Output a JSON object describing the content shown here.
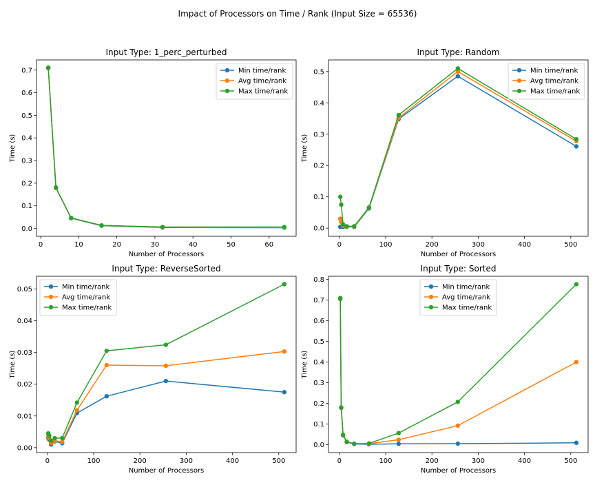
{
  "figure": {
    "suptitle": "Impact of Processors on Time / Rank (Input Size = 65536)"
  },
  "chart_data": [
    {
      "type": "line",
      "title": "Input Type: 1_perc_perturbed",
      "xlabel": "Number of Processors",
      "ylabel": "Time (s)",
      "xlim": [
        -1.1,
        67.1
      ],
      "ylim": [
        -0.035,
        0.745
      ],
      "xticks": [
        0,
        10,
        20,
        30,
        40,
        50,
        60
      ],
      "yticks": [
        0.0,
        0.1,
        0.2,
        0.3,
        0.4,
        0.5,
        0.6,
        0.7
      ],
      "ytick_labels": [
        "0.0",
        "0.1",
        "0.2",
        "0.3",
        "0.4",
        "0.5",
        "0.6",
        "0.7"
      ],
      "legend_position": "upper right",
      "x": [
        2,
        4,
        8,
        16,
        32,
        64
      ],
      "series": [
        {
          "name": "Min time/rank",
          "color": "#1f77b4",
          "values": [
            0.709,
            0.179,
            0.045,
            0.012,
            0.004,
            0.003
          ]
        },
        {
          "name": "Avg time/rank",
          "color": "#ff7f0e",
          "values": [
            0.71,
            0.18,
            0.046,
            0.013,
            0.005,
            0.004
          ]
        },
        {
          "name": "Max time/rank",
          "color": "#2ca02c",
          "values": [
            0.711,
            0.181,
            0.046,
            0.013,
            0.006,
            0.006
          ]
        }
      ]
    },
    {
      "type": "line",
      "title": "Input Type: Random",
      "xlabel": "Number of Processors",
      "ylabel": "Time (s)",
      "xlim": [
        -23.5,
        537.5
      ],
      "ylim": [
        -0.026,
        0.537
      ],
      "xticks": [
        0,
        100,
        200,
        300,
        400,
        500
      ],
      "yticks": [
        0.0,
        0.1,
        0.2,
        0.3,
        0.4,
        0.5
      ],
      "ytick_labels": [
        "0.0",
        "0.1",
        "0.2",
        "0.3",
        "0.4",
        "0.5"
      ],
      "legend_position": "upper right",
      "x": [
        2,
        4,
        8,
        16,
        32,
        64,
        128,
        256,
        512
      ],
      "series": [
        {
          "name": "Min time/rank",
          "color": "#1f77b4",
          "values": [
            0.004,
            0.005,
            0.004,
            0.004,
            0.004,
            0.063,
            0.348,
            0.485,
            0.261
          ]
        },
        {
          "name": "Avg time/rank",
          "color": "#ff7f0e",
          "values": [
            0.03,
            0.02,
            0.008,
            0.005,
            0.005,
            0.065,
            0.352,
            0.5,
            0.278
          ]
        },
        {
          "name": "Max time/rank",
          "color": "#2ca02c",
          "values": [
            0.1,
            0.075,
            0.012,
            0.006,
            0.006,
            0.066,
            0.361,
            0.51,
            0.284
          ]
        }
      ]
    },
    {
      "type": "line",
      "title": "Input Type: ReverseSorted",
      "xlabel": "Number of Processors",
      "ylabel": "Time (s)",
      "xlim": [
        -23.5,
        537.5
      ],
      "ylim": [
        -0.00155,
        0.054
      ],
      "xticks": [
        0,
        100,
        200,
        300,
        400,
        500
      ],
      "yticks": [
        0.0,
        0.01,
        0.02,
        0.03,
        0.04,
        0.05
      ],
      "ytick_labels": [
        "0.00",
        "0.01",
        "0.02",
        "0.03",
        "0.04",
        "0.05"
      ],
      "legend_position": "upper left",
      "x": [
        2,
        4,
        8,
        16,
        32,
        64,
        128,
        256,
        512
      ],
      "series": [
        {
          "name": "Min time/rank",
          "color": "#1f77b4",
          "values": [
            0.003,
            0.0025,
            0.001,
            0.002,
            0.0014,
            0.0109,
            0.0162,
            0.021,
            0.0175
          ]
        },
        {
          "name": "Avg time/rank",
          "color": "#ff7f0e",
          "values": [
            0.0035,
            0.003,
            0.0015,
            0.0022,
            0.0018,
            0.0118,
            0.026,
            0.0258,
            0.0303
          ]
        },
        {
          "name": "Max time/rank",
          "color": "#2ca02c",
          "values": [
            0.0045,
            0.0038,
            0.0022,
            0.003,
            0.003,
            0.0142,
            0.0305,
            0.0324,
            0.0515
          ]
        }
      ]
    },
    {
      "type": "line",
      "title": "Input Type: Sorted",
      "xlabel": "Number of Processors",
      "ylabel": "Time (s)",
      "xlim": [
        -23.5,
        537.5
      ],
      "ylim": [
        -0.0385,
        0.8155
      ],
      "xticks": [
        0,
        100,
        200,
        300,
        400,
        500
      ],
      "yticks": [
        0.0,
        0.1,
        0.2,
        0.3,
        0.4,
        0.5,
        0.6,
        0.7,
        0.8
      ],
      "ytick_labels": [
        "0.0",
        "0.1",
        "0.2",
        "0.3",
        "0.4",
        "0.5",
        "0.6",
        "0.7",
        "0.8"
      ],
      "legend_position": "upper center",
      "x": [
        2,
        4,
        8,
        16,
        32,
        64,
        128,
        256,
        512
      ],
      "series": [
        {
          "name": "Min time/rank",
          "color": "#1f77b4",
          "values": [
            0.705,
            0.178,
            0.045,
            0.012,
            0.003,
            0.002,
            0.004,
            0.005,
            0.009
          ]
        },
        {
          "name": "Avg time/rank",
          "color": "#ff7f0e",
          "values": [
            0.707,
            0.179,
            0.046,
            0.013,
            0.004,
            0.004,
            0.024,
            0.092,
            0.4
          ]
        },
        {
          "name": "Max time/rank",
          "color": "#2ca02c",
          "values": [
            0.71,
            0.18,
            0.047,
            0.014,
            0.005,
            0.006,
            0.056,
            0.207,
            0.777
          ]
        }
      ]
    }
  ]
}
